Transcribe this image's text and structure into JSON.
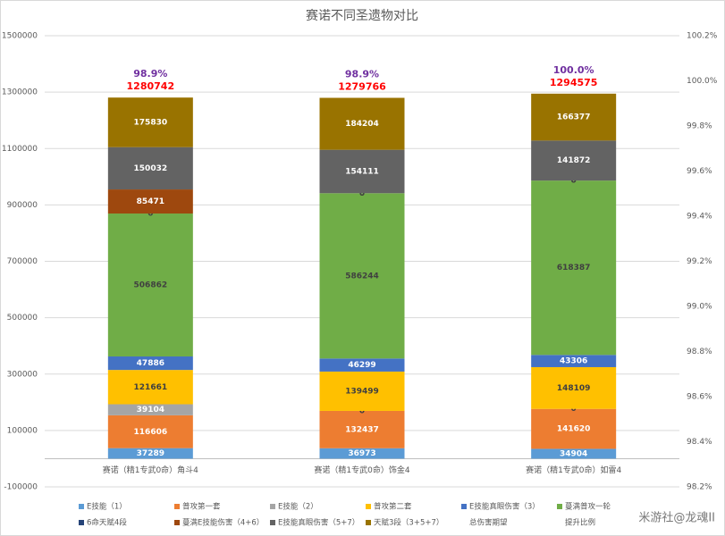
{
  "chart_data": {
    "type": "stacked-bar",
    "title": "赛诺不同圣遗物对比",
    "categories": [
      "赛诺（精1专武0命）角斗4",
      "赛诺（精1专武0命）饰金4",
      "赛诺（精1专武0命）如雷4"
    ],
    "series": [
      {
        "name": "E技能（1）",
        "color": "#5b9bd5",
        "values": [
          37289,
          36973,
          34904
        ]
      },
      {
        "name": "普攻第一套",
        "color": "#ed7d31",
        "values": [
          116606,
          132437,
          141620
        ]
      },
      {
        "name": "E技能（2）",
        "color": "#a5a5a5",
        "values": [
          39104,
          0,
          0
        ]
      },
      {
        "name": "普攻第二套",
        "color": "#ffc000",
        "values": [
          121661,
          139499,
          148109
        ]
      },
      {
        "name": "E技能真眼伤害（3）",
        "color": "#4472c4",
        "values": [
          47886,
          46299,
          43306
        ]
      },
      {
        "name": "蔓满普攻一轮",
        "color": "#70ad47",
        "values": [
          506862,
          586244,
          618387
        ]
      },
      {
        "name": "6命天赋4段",
        "color": "#264478",
        "values": [
          0,
          0,
          0
        ]
      },
      {
        "name": "蔓满E技能伤害（4+6）",
        "color": "#9e480e",
        "values": [
          85471,
          0,
          0
        ]
      },
      {
        "name": "E技能真眼伤害（5+7）",
        "color": "#636363",
        "values": [
          150032,
          154111,
          141872
        ]
      },
      {
        "name": "天赋3段（3+5+7）",
        "color": "#997300",
        "values": [
          175830,
          184204,
          166377
        ]
      },
      {
        "name": "总伤害期望",
        "type": "label",
        "color": "#ff0000",
        "values": [
          1280742,
          1279766,
          1294575
        ]
      },
      {
        "name": "提升比例",
        "type": "label",
        "axis": "y2",
        "color": "#7030a0",
        "values": [
          98.9,
          98.9,
          100.0
        ],
        "value_labels": [
          "98.9%",
          "98.9%",
          "100.0%"
        ]
      }
    ],
    "ylim": [
      -100000,
      1500000
    ],
    "yticks": [
      -100000,
      100000,
      300000,
      500000,
      700000,
      900000,
      1100000,
      1300000,
      1500000
    ],
    "y2lim": [
      98.2,
      100.2
    ],
    "y2ticks": [
      {
        "value": 98.2,
        "label": "98.2%"
      },
      {
        "value": 98.4,
        "label": "98.4%"
      },
      {
        "value": 98.6,
        "label": "98.6%"
      },
      {
        "value": 98.8,
        "label": "98.8%"
      },
      {
        "value": 99.0,
        "label": "99.0%"
      },
      {
        "value": 99.2,
        "label": "99.2%"
      },
      {
        "value": 99.4,
        "label": "99.4%"
      },
      {
        "value": 99.6,
        "label": "99.6%"
      },
      {
        "value": 99.8,
        "label": "99.8%"
      },
      {
        "value": 100.0,
        "label": "100.0%"
      },
      {
        "value": 100.2,
        "label": "100.2%"
      }
    ],
    "grid": true,
    "watermark": "米游社@龙魂II"
  }
}
